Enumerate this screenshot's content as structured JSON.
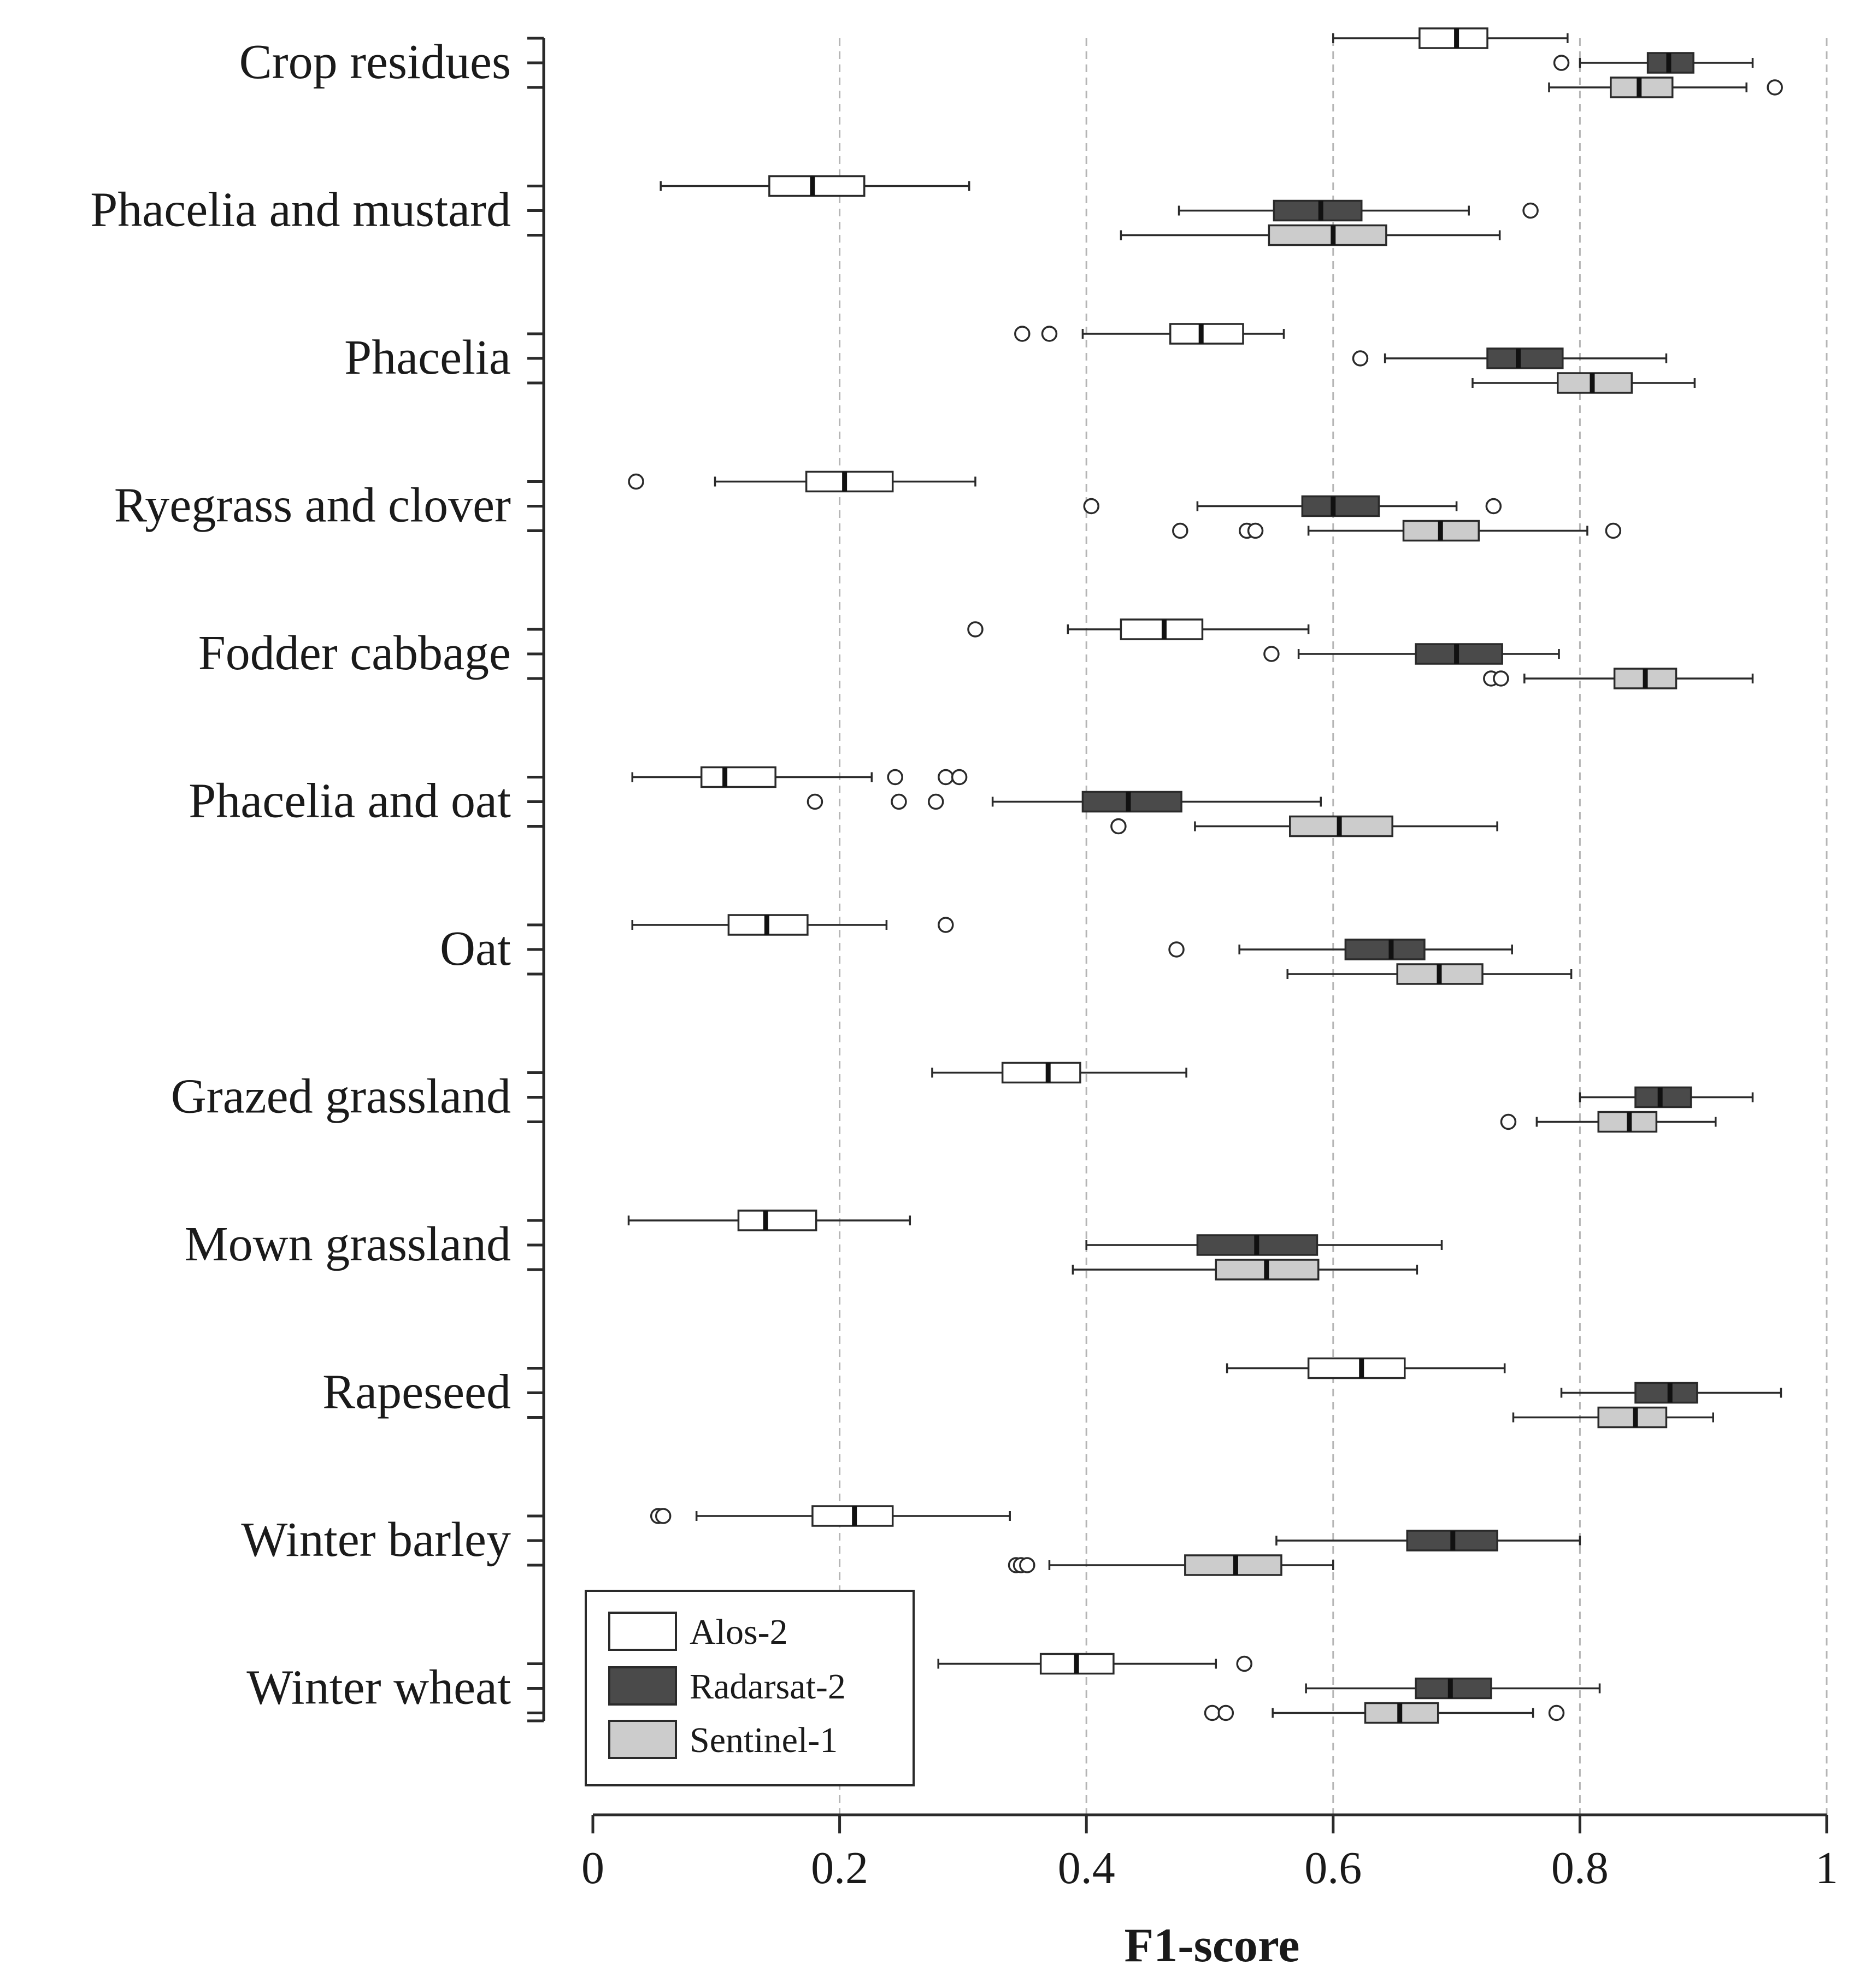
{
  "chart_data": {
    "type": "boxplot",
    "orientation": "horizontal",
    "title": "",
    "xlabel": "F1-score",
    "ylabel": "",
    "xlim": [
      0,
      1
    ],
    "x_ticks": [
      0,
      0.2,
      0.4,
      0.6,
      0.8,
      1
    ],
    "x_tick_labels": [
      "0",
      "0.2",
      "0.4",
      "0.6",
      "0.8",
      "1"
    ],
    "grid": "vertical dashed",
    "legend_position": "bottom-left",
    "series_names": [
      "Alos-2",
      "Radarsat-2",
      "Sentinel-1"
    ],
    "series_colors": [
      "#ffffff",
      "#4a4a4a",
      "#cccccc"
    ],
    "categories": [
      {
        "name": "Crop residues",
        "boxes": [
          {
            "series": "Alos-2",
            "whisker_low": 0.6,
            "q1": 0.67,
            "median": 0.7,
            "q3": 0.725,
            "whisker_high": 0.79,
            "outliers": []
          },
          {
            "series": "Radarsat-2",
            "whisker_low": 0.8,
            "q1": 0.855,
            "median": 0.872,
            "q3": 0.892,
            "whisker_high": 0.94,
            "outliers": [
              0.785
            ]
          },
          {
            "series": "Sentinel-1",
            "whisker_low": 0.775,
            "q1": 0.825,
            "median": 0.848,
            "q3": 0.875,
            "whisker_high": 0.935,
            "outliers": [
              0.958
            ]
          }
        ]
      },
      {
        "name": "Phacelia and mustard",
        "boxes": [
          {
            "series": "Alos-2",
            "whisker_low": 0.055,
            "q1": 0.143,
            "median": 0.178,
            "q3": 0.22,
            "whisker_high": 0.305,
            "outliers": []
          },
          {
            "series": "Radarsat-2",
            "whisker_low": 0.475,
            "q1": 0.552,
            "median": 0.59,
            "q3": 0.623,
            "whisker_high": 0.71,
            "outliers": [
              0.76
            ]
          },
          {
            "series": "Sentinel-1",
            "whisker_low": 0.428,
            "q1": 0.548,
            "median": 0.6,
            "q3": 0.643,
            "whisker_high": 0.735,
            "outliers": []
          }
        ]
      },
      {
        "name": "Phacelia",
        "boxes": [
          {
            "series": "Alos-2",
            "whisker_low": 0.397,
            "q1": 0.468,
            "median": 0.493,
            "q3": 0.527,
            "whisker_high": 0.56,
            "outliers": [
              0.348,
              0.37
            ]
          },
          {
            "series": "Radarsat-2",
            "whisker_low": 0.642,
            "q1": 0.725,
            "median": 0.75,
            "q3": 0.786,
            "whisker_high": 0.87,
            "outliers": [
              0.622
            ]
          },
          {
            "series": "Sentinel-1",
            "whisker_low": 0.713,
            "q1": 0.782,
            "median": 0.81,
            "q3": 0.842,
            "whisker_high": 0.893,
            "outliers": []
          }
        ]
      },
      {
        "name": "Ryegrass and clover",
        "boxes": [
          {
            "series": "Alos-2",
            "whisker_low": 0.099,
            "q1": 0.173,
            "median": 0.204,
            "q3": 0.243,
            "whisker_high": 0.31,
            "outliers": [
              0.035
            ]
          },
          {
            "series": "Radarsat-2",
            "whisker_low": 0.49,
            "q1": 0.575,
            "median": 0.6,
            "q3": 0.637,
            "whisker_high": 0.7,
            "outliers": [
              0.404,
              0.73
            ]
          },
          {
            "series": "Sentinel-1",
            "whisker_low": 0.58,
            "q1": 0.657,
            "median": 0.687,
            "q3": 0.718,
            "whisker_high": 0.806,
            "outliers": [
              0.476,
              0.53,
              0.537,
              0.827
            ]
          }
        ]
      },
      {
        "name": "Fodder cabbage",
        "boxes": [
          {
            "series": "Alos-2",
            "whisker_low": 0.385,
            "q1": 0.428,
            "median": 0.463,
            "q3": 0.494,
            "whisker_high": 0.58,
            "outliers": [
              0.31
            ]
          },
          {
            "series": "Radarsat-2",
            "whisker_low": 0.572,
            "q1": 0.667,
            "median": 0.7,
            "q3": 0.737,
            "whisker_high": 0.783,
            "outliers": [
              0.55
            ]
          },
          {
            "series": "Sentinel-1",
            "whisker_low": 0.755,
            "q1": 0.828,
            "median": 0.853,
            "q3": 0.878,
            "whisker_high": 0.94,
            "outliers": [
              0.728,
              0.736
            ]
          }
        ]
      },
      {
        "name": "Phacelia and oat",
        "boxes": [
          {
            "series": "Alos-2",
            "whisker_low": 0.032,
            "q1": 0.088,
            "median": 0.107,
            "q3": 0.148,
            "whisker_high": 0.226,
            "outliers": [
              0.245,
              0.286,
              0.297
            ]
          },
          {
            "series": "Radarsat-2",
            "whisker_low": 0.324,
            "q1": 0.397,
            "median": 0.434,
            "q3": 0.477,
            "whisker_high": 0.59,
            "outliers": [
              0.18,
              0.248,
              0.278
            ]
          },
          {
            "series": "Sentinel-1",
            "whisker_low": 0.488,
            "q1": 0.565,
            "median": 0.605,
            "q3": 0.648,
            "whisker_high": 0.733,
            "outliers": [
              0.426
            ]
          }
        ]
      },
      {
        "name": "Oat",
        "boxes": [
          {
            "series": "Alos-2",
            "whisker_low": 0.032,
            "q1": 0.11,
            "median": 0.141,
            "q3": 0.174,
            "whisker_high": 0.238,
            "outliers": [
              0.286
            ]
          },
          {
            "series": "Radarsat-2",
            "whisker_low": 0.524,
            "q1": 0.61,
            "median": 0.647,
            "q3": 0.674,
            "whisker_high": 0.745,
            "outliers": [
              0.473
            ]
          },
          {
            "series": "Sentinel-1",
            "whisker_low": 0.563,
            "q1": 0.652,
            "median": 0.686,
            "q3": 0.721,
            "whisker_high": 0.793,
            "outliers": []
          }
        ]
      },
      {
        "name": "Grazed grassland",
        "boxes": [
          {
            "series": "Alos-2",
            "whisker_low": 0.275,
            "q1": 0.332,
            "median": 0.369,
            "q3": 0.395,
            "whisker_high": 0.481,
            "outliers": []
          },
          {
            "series": "Radarsat-2",
            "whisker_low": 0.8,
            "q1": 0.845,
            "median": 0.865,
            "q3": 0.89,
            "whisker_high": 0.94,
            "outliers": []
          },
          {
            "series": "Sentinel-1",
            "whisker_low": 0.765,
            "q1": 0.815,
            "median": 0.84,
            "q3": 0.862,
            "whisker_high": 0.91,
            "outliers": [
              0.742
            ]
          }
        ]
      },
      {
        "name": "Mown grassland",
        "boxes": [
          {
            "series": "Alos-2",
            "whisker_low": 0.029,
            "q1": 0.118,
            "median": 0.14,
            "q3": 0.181,
            "whisker_high": 0.257,
            "outliers": []
          },
          {
            "series": "Radarsat-2",
            "whisker_low": 0.4,
            "q1": 0.49,
            "median": 0.538,
            "q3": 0.587,
            "whisker_high": 0.688,
            "outliers": []
          },
          {
            "series": "Sentinel-1",
            "whisker_low": 0.389,
            "q1": 0.505,
            "median": 0.546,
            "q3": 0.588,
            "whisker_high": 0.668,
            "outliers": []
          }
        ]
      },
      {
        "name": "Rapeseed",
        "boxes": [
          {
            "series": "Alos-2",
            "whisker_low": 0.514,
            "q1": 0.58,
            "median": 0.623,
            "q3": 0.658,
            "whisker_high": 0.739,
            "outliers": []
          },
          {
            "series": "Radarsat-2",
            "whisker_low": 0.785,
            "q1": 0.845,
            "median": 0.873,
            "q3": 0.895,
            "whisker_high": 0.963,
            "outliers": []
          },
          {
            "series": "Sentinel-1",
            "whisker_low": 0.746,
            "q1": 0.815,
            "median": 0.845,
            "q3": 0.87,
            "whisker_high": 0.908,
            "outliers": []
          }
        ]
      },
      {
        "name": "Winter barley",
        "boxes": [
          {
            "series": "Alos-2",
            "whisker_low": 0.084,
            "q1": 0.178,
            "median": 0.212,
            "q3": 0.243,
            "whisker_high": 0.338,
            "outliers": [
              0.053,
              0.057
            ]
          },
          {
            "series": "Radarsat-2",
            "whisker_low": 0.554,
            "q1": 0.66,
            "median": 0.697,
            "q3": 0.733,
            "whisker_high": 0.8,
            "outliers": []
          },
          {
            "series": "Sentinel-1",
            "whisker_low": 0.37,
            "q1": 0.48,
            "median": 0.521,
            "q3": 0.558,
            "whisker_high": 0.6,
            "outliers": [
              0.343,
              0.347,
              0.352
            ]
          }
        ]
      },
      {
        "name": "Winter wheat",
        "boxes": [
          {
            "series": "Alos-2",
            "whisker_low": 0.28,
            "q1": 0.363,
            "median": 0.392,
            "q3": 0.422,
            "whisker_high": 0.505,
            "outliers": [
              0.528
            ]
          },
          {
            "series": "Radarsat-2",
            "whisker_low": 0.578,
            "q1": 0.667,
            "median": 0.695,
            "q3": 0.728,
            "whisker_high": 0.816,
            "outliers": []
          },
          {
            "series": "Sentinel-1",
            "whisker_low": 0.551,
            "q1": 0.626,
            "median": 0.654,
            "q3": 0.685,
            "whisker_high": 0.762,
            "outliers": [
              0.502,
              0.513,
              0.781
            ]
          }
        ]
      }
    ]
  }
}
